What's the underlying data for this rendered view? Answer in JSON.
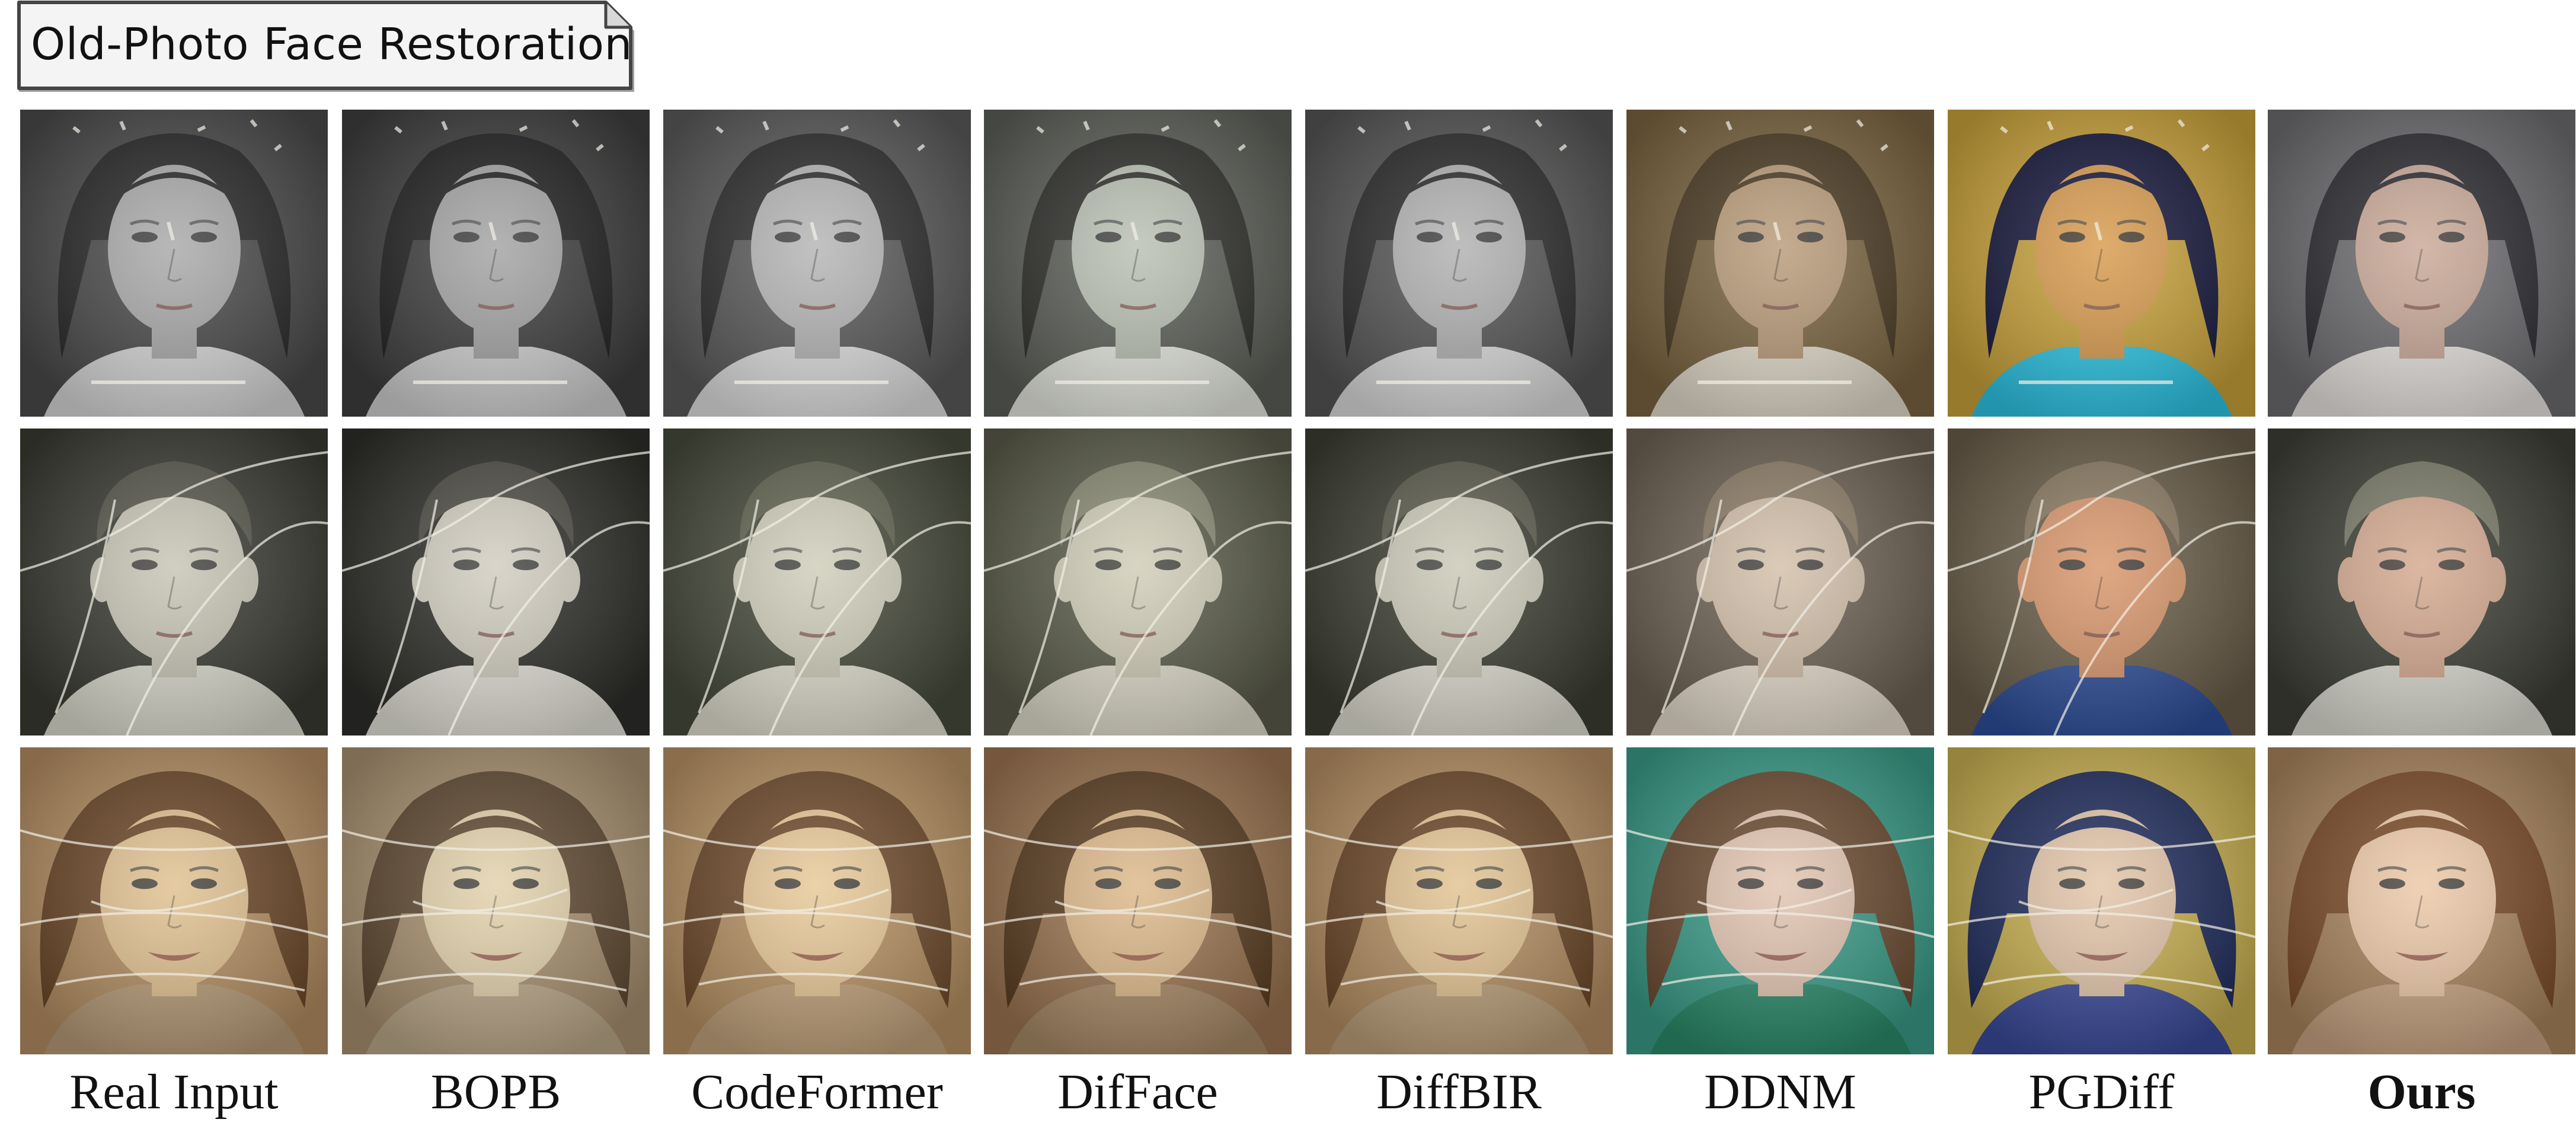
{
  "title": "Old-Photo Face Restoration",
  "columns": [
    {
      "label": "Real Input",
      "bold": false
    },
    {
      "label": "BOPB",
      "bold": false
    },
    {
      "label": "CodeFormer",
      "bold": false
    },
    {
      "label": "DifFace",
      "bold": false
    },
    {
      "label": "DiffBIR",
      "bold": false
    },
    {
      "label": "DDNM",
      "bold": false
    },
    {
      "label": "PGDiff",
      "bold": false
    },
    {
      "label": "Ours",
      "bold": true
    }
  ],
  "rows": [
    {
      "subject": "girl-dark-hair",
      "palettes": [
        {
          "bg": "#4a4a4a",
          "hair": "#262626",
          "skin": "#a8a8a8",
          "shirt": "#d8d8d8",
          "scratch": true
        },
        {
          "bg": "#3e3e3e",
          "hair": "#1f1f1f",
          "skin": "#a2a2a2",
          "shirt": "#d0d0d0",
          "scratch": true
        },
        {
          "bg": "#5a5a5a",
          "hair": "#2c2c2c",
          "skin": "#b4b4b4",
          "shirt": "#e0e0e0",
          "scratch": true
        },
        {
          "bg": "#5c5f58",
          "hair": "#2e2f2b",
          "skin": "#b9bfb2",
          "shirt": "#e6e8e0",
          "scratch": true
        },
        {
          "bg": "#555555",
          "hair": "#2a2a2a",
          "skin": "#b0b0b0",
          "shirt": "#dcdcdc",
          "scratch": true
        },
        {
          "bg": "#7a6440",
          "hair": "#4a3a22",
          "skin": "#b89a78",
          "shirt": "#e4dccc",
          "scratch": true
        },
        {
          "bg": "#c9a23a",
          "hair": "#14163a",
          "skin": "#d79a4c",
          "shirt": "#2ec6e6",
          "scratch": true
        },
        {
          "bg": "#6c6c70",
          "hair": "#2a2a30",
          "skin": "#c9a896",
          "shirt": "#e8e4e0",
          "scratch": false
        }
      ]
    },
    {
      "subject": "boy-short-hair",
      "palettes": [
        {
          "bg": "#3a3b33",
          "hair": "#55554a",
          "skin": "#c6c4b4",
          "shirt": "#dcdccf",
          "scratch": true
        },
        {
          "bg": "#2e2e2a",
          "hair": "#4c4a42",
          "skin": "#d0ccbe",
          "shirt": "#e4e2d8",
          "scratch": true
        },
        {
          "bg": "#464a3a",
          "hair": "#60634f",
          "skin": "#cfcdb9",
          "shirt": "#e2e0d0",
          "scratch": true
        },
        {
          "bg": "#5a5c4a",
          "hair": "#8a8a74",
          "skin": "#cfccb6",
          "shirt": "#e0ddcc",
          "scratch": true
        },
        {
          "bg": "#3c3e32",
          "hair": "#5a5a4c",
          "skin": "#cac8b6",
          "shirt": "#e0ded2",
          "scratch": true
        },
        {
          "bg": "#6e6254",
          "hair": "#8c7c66",
          "skin": "#d2bea8",
          "shirt": "#e6dccc",
          "scratch": true
        },
        {
          "bg": "#6a5e4a",
          "hair": "#8a7a62",
          "skin": "#d8956a",
          "shirt": "#2f4f9a",
          "scratch": true
        },
        {
          "bg": "#3c3f35",
          "hair": "#7a7a68",
          "skin": "#d4a88e",
          "shirt": "#dcdcd2",
          "scratch": false
        }
      ]
    },
    {
      "subject": "woman-curly-hair",
      "palettes": [
        {
          "bg": "#b48e62",
          "hair": "#6a4626",
          "skin": "#e0c08e",
          "shirt": "#b89c78",
          "scratch": true
        },
        {
          "bg": "#a89070",
          "hair": "#5e4830",
          "skin": "#e2d0aa",
          "shirt": "#bca88a",
          "scratch": true
        },
        {
          "bg": "#b89264",
          "hair": "#6e4a2a",
          "skin": "#e8c896",
          "shirt": "#c2a27c",
          "scratch": true
        },
        {
          "bg": "#9a7450",
          "hair": "#5a3c20",
          "skin": "#dcb888",
          "shirt": "#a88a66",
          "scratch": true
        },
        {
          "bg": "#b48e62",
          "hair": "#6a4626",
          "skin": "#e2c290",
          "shirt": "#bca07a",
          "scratch": true
        },
        {
          "bg": "#3a9c88",
          "hair": "#6a4a30",
          "skin": "#e2c4b0",
          "shirt": "#2a8a6a",
          "scratch": true
        },
        {
          "bg": "#c8b050",
          "hair": "#1e2a5a",
          "skin": "#e2c4a8",
          "shirt": "#3a4a9a",
          "scratch": true
        },
        {
          "bg": "#a8845c",
          "hair": "#7a4a26",
          "skin": "#ecc8a6",
          "shirt": "#c8a482",
          "scratch": false
        }
      ]
    }
  ]
}
